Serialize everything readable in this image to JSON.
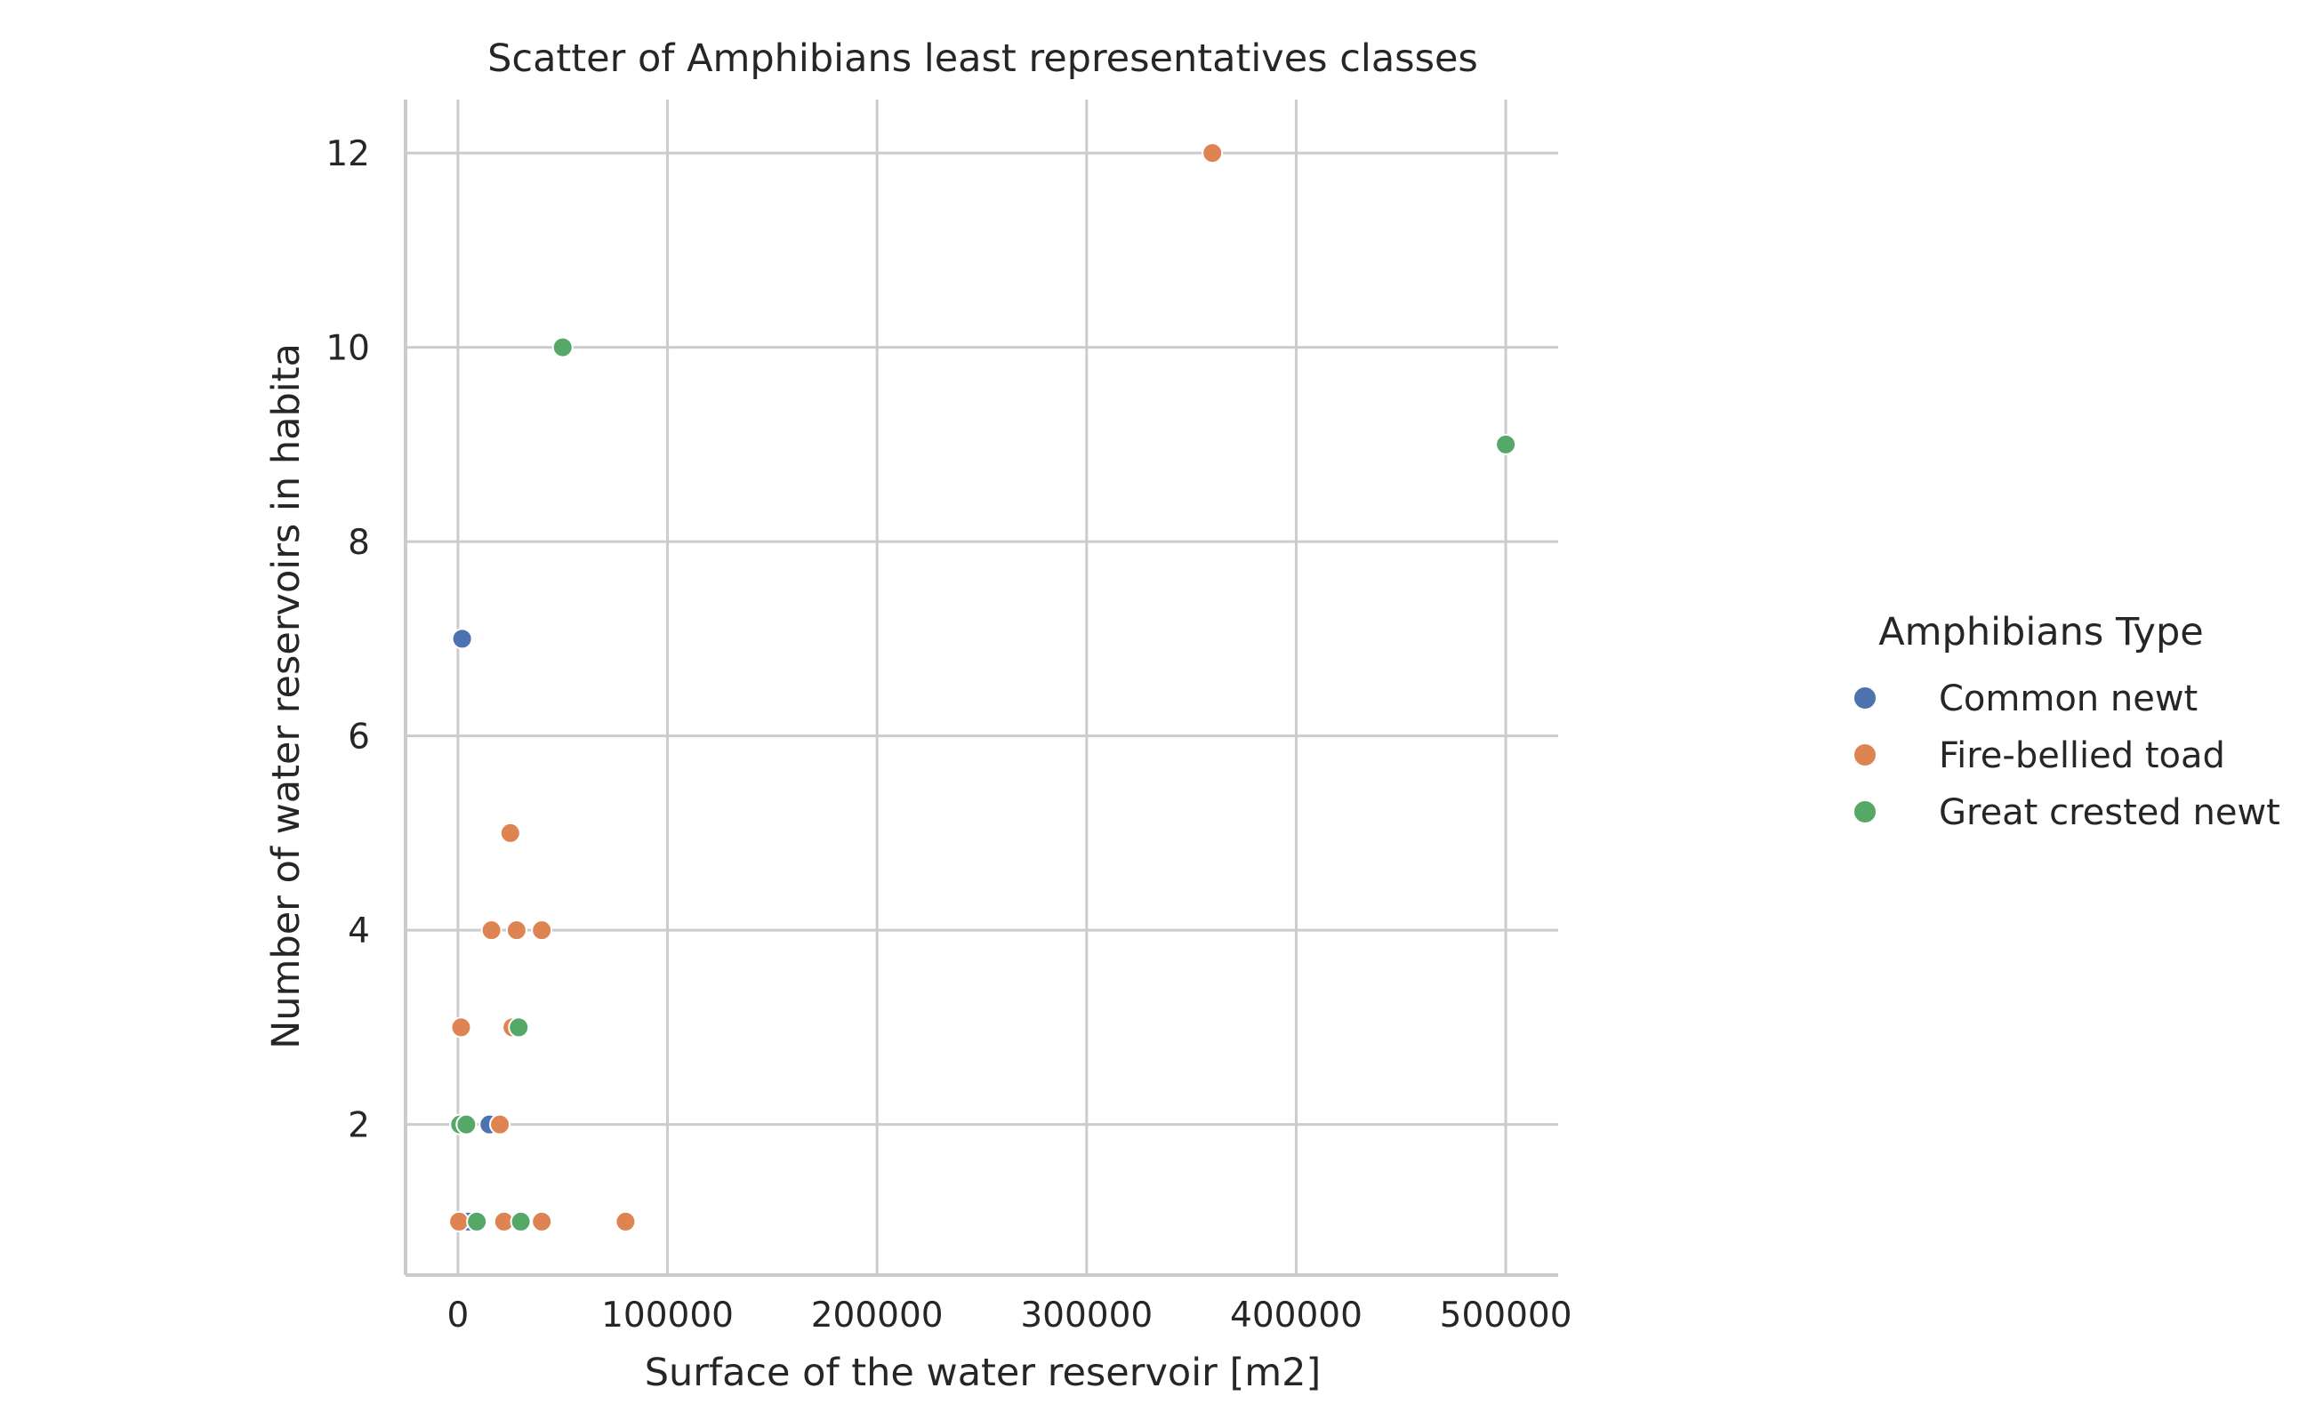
{
  "chart_data": {
    "type": "scatter",
    "title": "Scatter of Amphibians least representatives classes",
    "xlabel": "Surface of the water reservoir [m2]",
    "ylabel": "Number of water reservoirs in habita",
    "xlim": [
      -25000,
      525000
    ],
    "ylim": [
      0.45,
      12.55
    ],
    "xticks": [
      0,
      100000,
      200000,
      300000,
      400000,
      500000
    ],
    "xtick_labels": [
      "0",
      "100000",
      "200000",
      "300000",
      "400000",
      "500000"
    ],
    "yticks": [
      2,
      4,
      6,
      8,
      10,
      12
    ],
    "ytick_labels": [
      "2",
      "4",
      "6",
      "8",
      "10",
      "12"
    ],
    "grid": true,
    "legend": {
      "title": "Amphibians Type",
      "placement": "right"
    },
    "series": [
      {
        "name": "Common newt",
        "color": "#4c72b0",
        "points": [
          {
            "x": 2000,
            "y": 7
          },
          {
            "x": 15000,
            "y": 2
          },
          {
            "x": 3000,
            "y": 1
          },
          {
            "x": 5000,
            "y": 1
          }
        ]
      },
      {
        "name": "Fire-bellied toad",
        "color": "#dd8452",
        "points": [
          {
            "x": 360000,
            "y": 12
          },
          {
            "x": 25000,
            "y": 5
          },
          {
            "x": 16000,
            "y": 4
          },
          {
            "x": 28000,
            "y": 4
          },
          {
            "x": 40000,
            "y": 4
          },
          {
            "x": 1500,
            "y": 3
          },
          {
            "x": 26000,
            "y": 3
          },
          {
            "x": 20000,
            "y": 2
          },
          {
            "x": 500,
            "y": 1
          },
          {
            "x": 22000,
            "y": 1
          },
          {
            "x": 40000,
            "y": 1
          },
          {
            "x": 80000,
            "y": 1
          }
        ]
      },
      {
        "name": "Great crested newt",
        "color": "#55a868",
        "points": [
          {
            "x": 50000,
            "y": 10
          },
          {
            "x": 500000,
            "y": 9
          },
          {
            "x": 29000,
            "y": 3
          },
          {
            "x": 1000,
            "y": 2
          },
          {
            "x": 4000,
            "y": 2
          },
          {
            "x": 9000,
            "y": 1
          },
          {
            "x": 30000,
            "y": 1
          }
        ]
      }
    ]
  }
}
